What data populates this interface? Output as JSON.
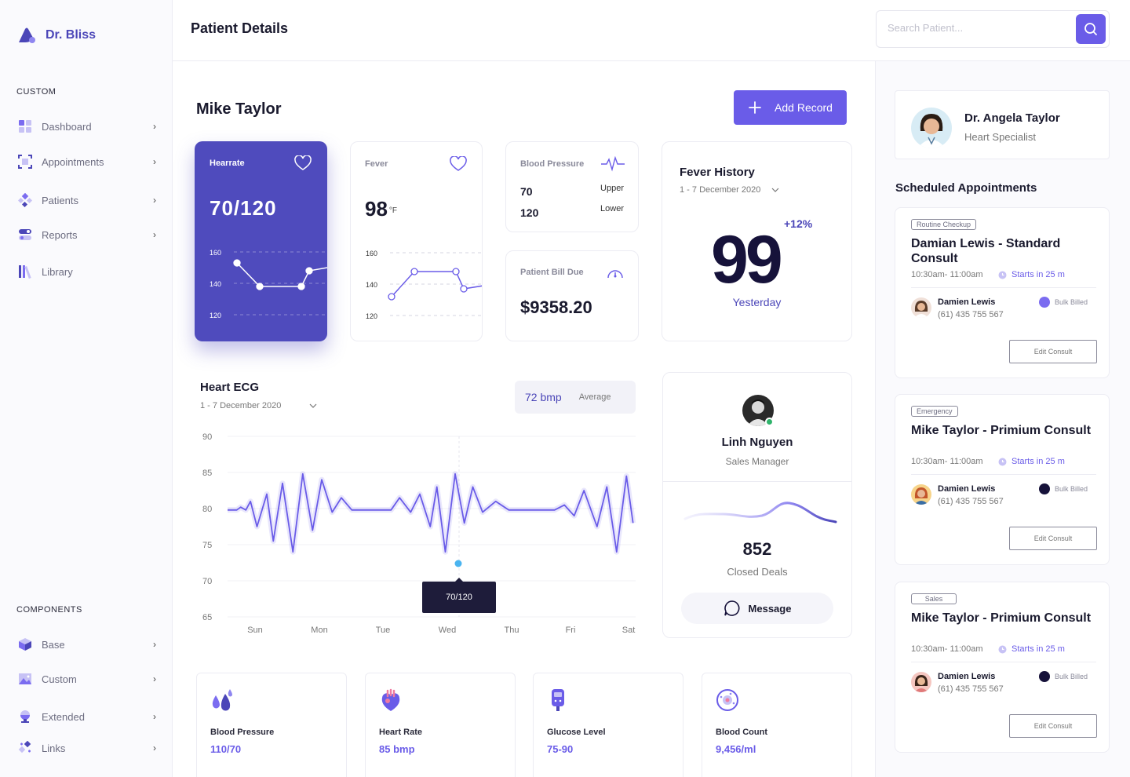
{
  "app": {
    "name": "Dr. Bliss"
  },
  "sidebar": {
    "custom_label": "CUSTOM",
    "items": [
      {
        "label": "Dashboard",
        "icon": "dashboard-icon"
      },
      {
        "label": "Appointments",
        "icon": "appointments-icon"
      },
      {
        "label": "Patients",
        "icon": "patients-icon"
      },
      {
        "label": "Reports",
        "icon": "reports-icon"
      },
      {
        "label": "Library",
        "icon": "library-icon"
      }
    ],
    "components_label": "COMPONENTS",
    "components": [
      {
        "label": "Base",
        "icon": "cube-icon"
      },
      {
        "label": "Custom",
        "icon": "image-icon"
      },
      {
        "label": "Extended",
        "icon": "lamp-icon"
      },
      {
        "label": "Links",
        "icon": "links-icon"
      }
    ]
  },
  "header": {
    "title": "Patient Details"
  },
  "search": {
    "placeholder": "Search Patient..."
  },
  "patient": {
    "name": "Mike Taylor",
    "add_record_label": "Add Record"
  },
  "heartrate": {
    "label": "Hearrate",
    "value": "70/120",
    "chart_data": {
      "type": "line",
      "y_ticks": [
        "160",
        "140",
        "120"
      ],
      "values": [
        153,
        138,
        138,
        148
      ],
      "ylim": [
        120,
        160
      ]
    }
  },
  "fever": {
    "label": "Fever",
    "value": "98",
    "unit": "°F",
    "chart_data": {
      "type": "line",
      "y_ticks": [
        "160",
        "140",
        "120"
      ],
      "values": [
        132,
        148,
        148,
        137
      ],
      "ylim": [
        120,
        160
      ]
    }
  },
  "blood_pressure": {
    "label": "Blood Pressure",
    "upper_value": "70",
    "upper_label": "Upper",
    "lower_value": "120",
    "lower_label": "Lower"
  },
  "bill": {
    "label": "Patient Bill Due",
    "value": "$9358.20"
  },
  "fever_history": {
    "title": "Fever History",
    "range": "1 - 7 December 2020",
    "value": "99",
    "change": "+12%",
    "caption": "Yesterday"
  },
  "ecg": {
    "title": "Heart ECG",
    "range": "1 - 7 December 2020",
    "bpm": "72 bmp",
    "bpm_caption": "Average",
    "tooltip": "70/120",
    "chart_data": {
      "type": "line",
      "categories": [
        "Sun",
        "Mon",
        "Tue",
        "Wed",
        "Thu",
        "Fri",
        "Sat"
      ],
      "y_ticks": [
        90,
        85,
        80,
        75,
        70,
        65
      ],
      "ylim": [
        65,
        90
      ],
      "x_range": [
        0,
        6
      ],
      "points": [
        [
          0,
          79.8
        ],
        [
          0.14,
          79.8
        ],
        [
          0.2,
          80.2
        ],
        [
          0.28,
          79.8
        ],
        [
          0.35,
          81
        ],
        [
          0.45,
          77.5
        ],
        [
          0.6,
          82
        ],
        [
          0.7,
          75.5
        ],
        [
          0.84,
          83.5
        ],
        [
          1.0,
          74
        ],
        [
          1.15,
          84.8
        ],
        [
          1.3,
          77
        ],
        [
          1.44,
          84
        ],
        [
          1.6,
          79.5
        ],
        [
          1.74,
          81.5
        ],
        [
          1.9,
          79.8
        ],
        [
          2.3,
          79.8
        ],
        [
          2.5,
          79.8
        ],
        [
          2.63,
          81.5
        ],
        [
          2.8,
          79.5
        ],
        [
          2.94,
          82
        ],
        [
          3.1,
          77.5
        ],
        [
          3.2,
          83
        ],
        [
          3.33,
          74
        ],
        [
          3.48,
          84.8
        ],
        [
          3.62,
          78
        ],
        [
          3.75,
          83
        ],
        [
          3.9,
          79.5
        ],
        [
          4.1,
          81
        ],
        [
          4.3,
          79.8
        ],
        [
          4.8,
          79.8
        ],
        [
          5.0,
          79.8
        ],
        [
          5.15,
          80.5
        ],
        [
          5.3,
          79
        ],
        [
          5.45,
          82.5
        ],
        [
          5.65,
          77.5
        ],
        [
          5.8,
          83
        ],
        [
          5.95,
          74
        ],
        [
          6.1,
          84.5
        ],
        [
          6.2,
          78
        ]
      ]
    }
  },
  "contact": {
    "name": "Linh Nguyen",
    "role": "Sales Manager",
    "deals_value": "852",
    "deals_label": "Closed Deals",
    "message_label": "Message"
  },
  "stats": [
    {
      "label": "Blood Pressure",
      "value": "110/70",
      "icon": "drops-icon"
    },
    {
      "label": "Heart Rate",
      "value": "85 bmp",
      "icon": "heart-organ-icon"
    },
    {
      "label": "Glucose Level",
      "value": "75-90",
      "icon": "glucose-meter-icon"
    },
    {
      "label": "Blood Count",
      "value": "9,456/ml",
      "icon": "blood-cell-icon"
    }
  ],
  "doctor": {
    "name": "Dr. Angela Taylor",
    "title": "Heart Specialist"
  },
  "appointments_title": "Scheduled Appointments",
  "appointments": [
    {
      "tag": "Routine Checkup",
      "title": "Damian Lewis - Standard Consult",
      "time": "10:30am- 11:00am",
      "starts": "Starts in 25 m",
      "person": "Damien Lewis",
      "phone": "(61) 435 755 567",
      "bill": "Bulk Billed",
      "bill_color": "#7b6cf0",
      "button": "Edit Consult"
    },
    {
      "tag": "Emergency",
      "title": "Mike Taylor - Primium Consult",
      "time": "10:30am- 11:00am",
      "starts": "Starts in 25 m",
      "person": "Damien Lewis",
      "phone": "(61) 435 755 567",
      "bill": "Bulk Billed",
      "bill_color": "#16123a",
      "button": "Edit Consult"
    },
    {
      "tag": "Sales",
      "title": "Mike Taylor - Primium Consult",
      "time": "10:30am- 11:00am",
      "starts": "Starts in 25 m",
      "person": "Damien Lewis",
      "phone": "(61) 435 755 567",
      "bill": "Bulk Billed",
      "bill_color": "#16123a",
      "button": "Edit Consult"
    }
  ],
  "colors": {
    "accent": "#6a5ce8",
    "heartrate_card": "#4f4bbd",
    "dark": "#16123a"
  }
}
